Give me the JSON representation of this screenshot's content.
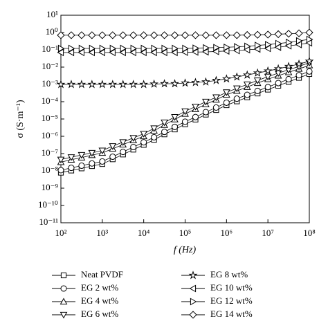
{
  "chart_data": {
    "type": "line",
    "x_label": "f (Hz)",
    "y_label": "σ (S·m⁻¹)",
    "xscale": "log",
    "yscale": "log",
    "xlim": [
      100,
      100000000
    ],
    "ylim": [
      1e-11,
      10
    ],
    "xticks": [
      {
        "value": 100,
        "label": "10²"
      },
      {
        "value": 1000,
        "label": "10³"
      },
      {
        "value": 10000,
        "label": "10⁴"
      },
      {
        "value": 100000,
        "label": "10⁵"
      },
      {
        "value": 1000000,
        "label": "10⁶"
      },
      {
        "value": 10000000,
        "label": "10⁷"
      },
      {
        "value": 100000000,
        "label": "10⁸"
      }
    ],
    "yticks": [
      {
        "value": 1e-11,
        "label": "10⁻¹¹"
      },
      {
        "value": 1e-10,
        "label": "10⁻¹⁰"
      },
      {
        "value": 1e-09,
        "label": "10⁻⁹"
      },
      {
        "value": 1e-08,
        "label": "10⁻⁸"
      },
      {
        "value": 1e-07,
        "label": "10⁻⁷"
      },
      {
        "value": 1e-06,
        "label": "10⁻⁶"
      },
      {
        "value": 1e-05,
        "label": "10⁻⁵"
      },
      {
        "value": 0.0001,
        "label": "10⁻⁴"
      },
      {
        "value": 0.001,
        "label": "10⁻³"
      },
      {
        "value": 0.01,
        "label": "10⁻²"
      },
      {
        "value": 0.1,
        "label": "10⁻¹"
      },
      {
        "value": 1,
        "label": "10⁰"
      },
      {
        "value": 10,
        "label": "10¹"
      }
    ],
    "x": [
      100,
      178,
      316,
      562,
      1000,
      1778,
      3162,
      5623,
      10000,
      17783,
      31623,
      56234,
      100000,
      177828,
      316228,
      562341,
      1000000,
      1778279,
      3162278,
      5623413,
      10000000,
      17782794,
      31622777,
      56234133,
      100000000
    ],
    "series": [
      {
        "name": "Neat PVDF",
        "color": "#000000",
        "marker": "square",
        "values": [
          7.9e-09,
          1.05e-08,
          1.4e-08,
          1.9e-08,
          2.5e-08,
          4.7e-08,
          8.9e-08,
          1.7e-07,
          3.2e-07,
          6.3e-07,
          1.3e-06,
          2.5e-06,
          5e-06,
          9.3e-06,
          1.8e-05,
          3.3e-05,
          6.3e-05,
          0.000105,
          0.00018,
          0.0003,
          0.0005,
          0.00084,
          0.0014,
          0.0024,
          0.004
        ]
      },
      {
        "name": "EG 2 wt%",
        "color": "#000000",
        "marker": "circle",
        "values": [
          1.1e-08,
          1.5e-08,
          2e-08,
          2.7e-08,
          3.5e-08,
          6.6e-08,
          1.25e-07,
          2.4e-07,
          4.5e-07,
          8.8e-07,
          1.8e-06,
          3.5e-06,
          7e-06,
          1.3e-05,
          2.5e-05,
          4.6e-05,
          8.8e-05,
          0.00015,
          0.00025,
          0.00042,
          0.0007,
          0.0012,
          0.002,
          0.0034,
          0.0056
        ]
      },
      {
        "name": "EG 4 wt%",
        "color": "#000000",
        "marker": "up",
        "values": [
          3.2e-08,
          4.4e-08,
          5.9e-08,
          8.1e-08,
          1.1e-07,
          1.9e-07,
          3.3e-07,
          5.8e-07,
          1e-06,
          2.1e-06,
          4.5e-06,
          9.4e-06,
          2e-05,
          3.7e-05,
          7.1e-05,
          0.00013,
          0.00025,
          0.00042,
          0.00071,
          0.0012,
          0.002,
          0.0032,
          0.005,
          0.0079,
          0.0126
        ]
      },
      {
        "name": "EG 6 wt%",
        "color": "#000000",
        "marker": "down",
        "values": [
          4.5e-08,
          6.2e-08,
          8.3e-08,
          1.1e-07,
          1.5e-07,
          2.7e-07,
          4.6e-07,
          8.1e-07,
          1.4e-06,
          2.9e-06,
          6.3e-06,
          1.3e-05,
          2.8e-05,
          5.2e-05,
          0.0001,
          0.00018,
          0.00035,
          0.00059,
          0.001,
          0.0017,
          0.0028,
          0.0045,
          0.007,
          0.011,
          0.018
        ]
      },
      {
        "name": "EG 8 wt%",
        "color": "#000000",
        "marker": "star",
        "values": [
          0.001,
          0.001,
          0.001,
          0.001,
          0.001,
          0.001,
          0.001,
          0.001,
          0.001,
          0.00105,
          0.0011,
          0.0011,
          0.0012,
          0.0013,
          0.0014,
          0.0017,
          0.0021,
          0.0027,
          0.0035,
          0.0046,
          0.006,
          0.008,
          0.011,
          0.015,
          0.022
        ]
      },
      {
        "name": "EG 10 wt%",
        "color": "#000000",
        "marker": "left",
        "values": [
          0.07,
          0.07,
          0.07,
          0.07,
          0.07,
          0.07,
          0.07,
          0.07,
          0.07,
          0.07,
          0.07,
          0.07,
          0.072,
          0.074,
          0.076,
          0.08,
          0.085,
          0.09,
          0.1,
          0.11,
          0.12,
          0.14,
          0.17,
          0.2,
          0.25
        ]
      },
      {
        "name": "EG 12 wt%",
        "color": "#000000",
        "marker": "right",
        "values": [
          0.12,
          0.12,
          0.12,
          0.12,
          0.12,
          0.12,
          0.12,
          0.12,
          0.12,
          0.12,
          0.12,
          0.12,
          0.12,
          0.125,
          0.13,
          0.135,
          0.14,
          0.15,
          0.16,
          0.18,
          0.2,
          0.23,
          0.27,
          0.33,
          0.4
        ]
      },
      {
        "name": "EG 14 wt%",
        "color": "#000000",
        "marker": "diamond",
        "values": [
          0.7,
          0.7,
          0.7,
          0.7,
          0.7,
          0.7,
          0.7,
          0.7,
          0.7,
          0.7,
          0.7,
          0.7,
          0.7,
          0.7,
          0.7,
          0.7,
          0.7,
          0.7,
          0.72,
          0.74,
          0.76,
          0.8,
          0.85,
          0.9,
          1.0
        ]
      }
    ]
  }
}
